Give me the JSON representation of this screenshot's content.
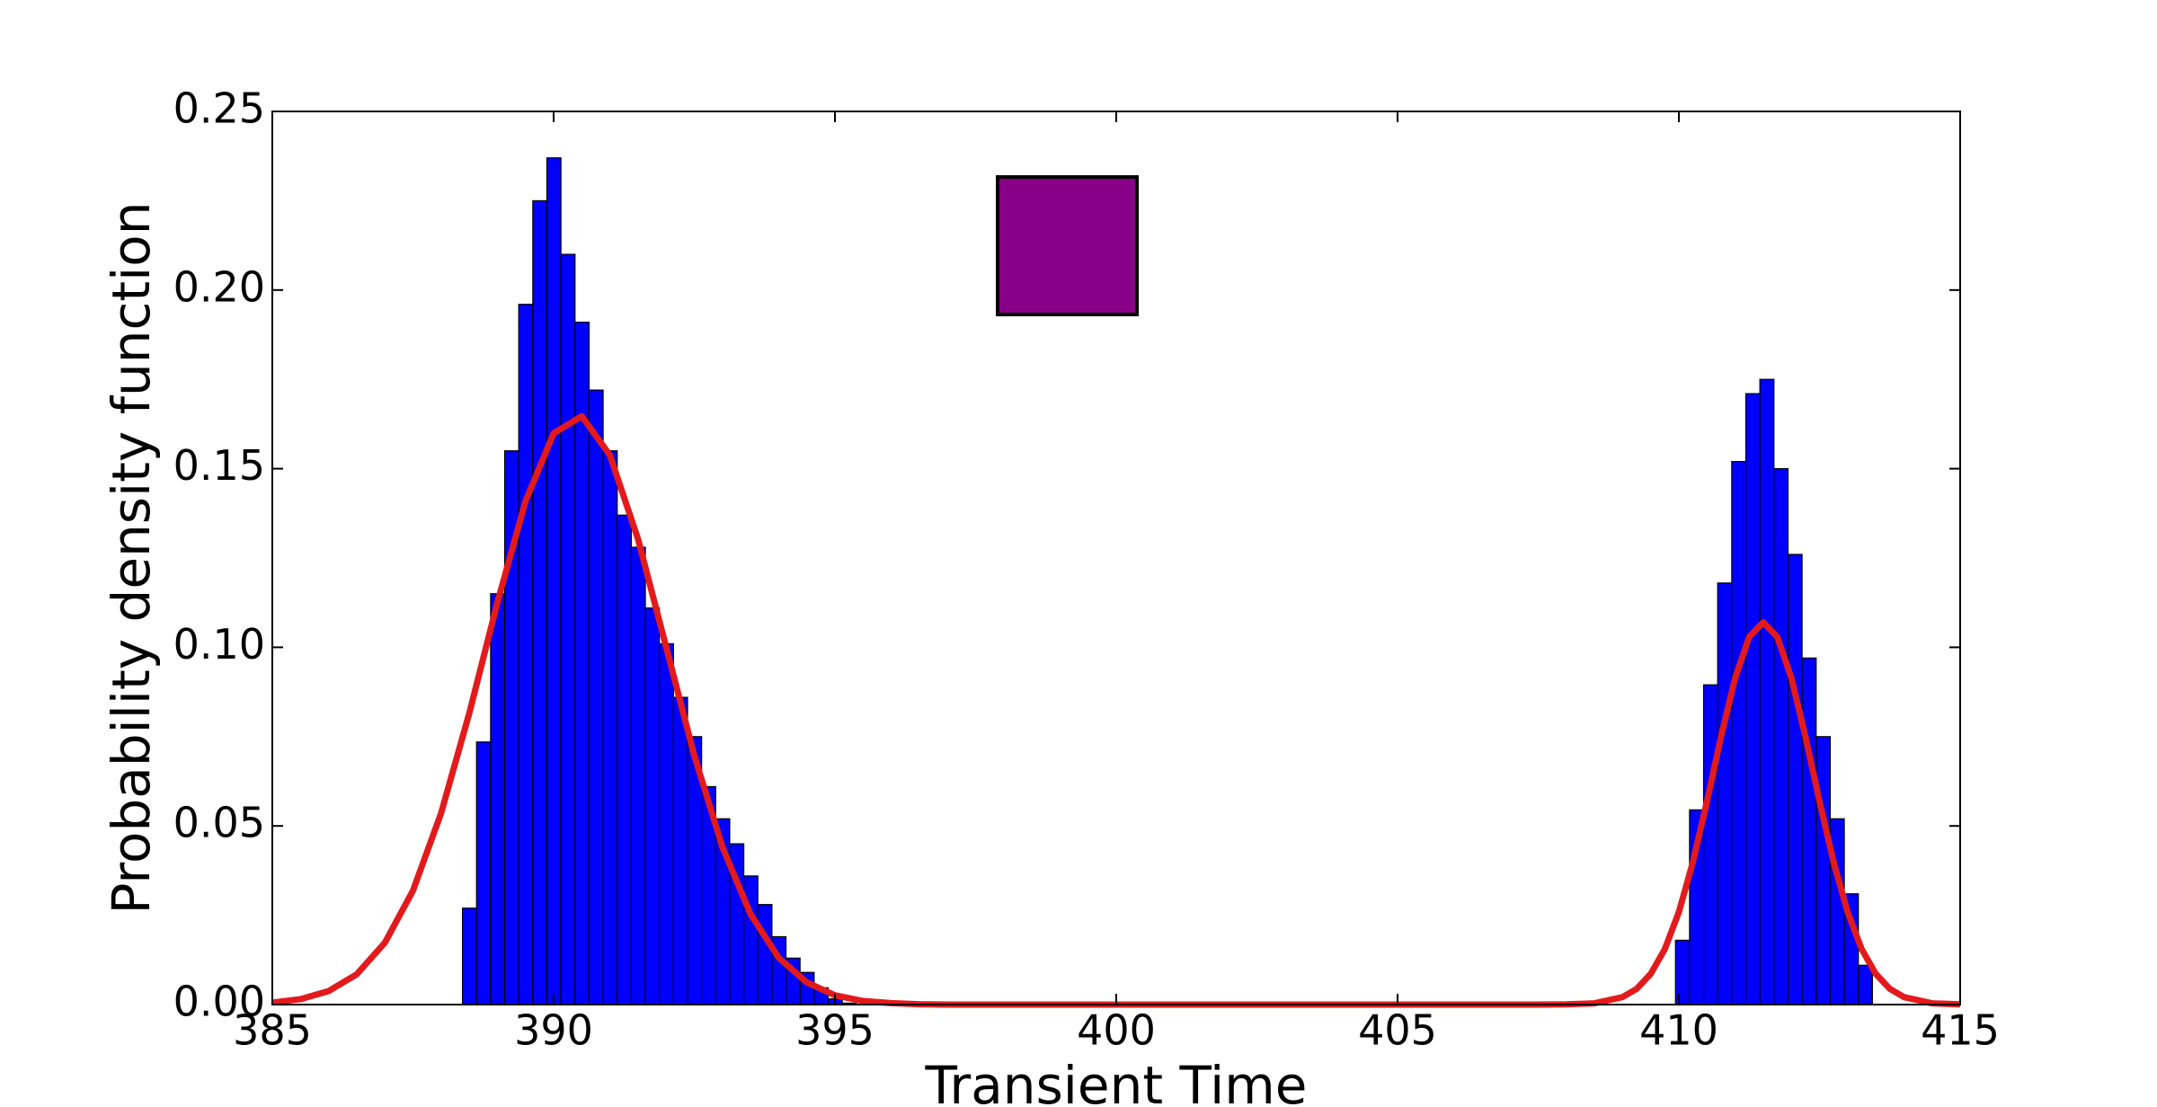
{
  "chart_data": {
    "type": "histogram",
    "xlabel": "Transient Time",
    "ylabel": "Probability density function",
    "xlim": [
      385,
      415
    ],
    "xticks": [
      385,
      390,
      395,
      400,
      405,
      410,
      415
    ],
    "ylim": [
      0,
      0.25
    ],
    "yticks": [
      {
        "value": 0,
        "label": "0.00"
      },
      0.05,
      {
        "value": 0.1,
        "label": "0.10"
      },
      0.15,
      {
        "value": 0.2,
        "label": "0.20"
      },
      0.25
    ],
    "color": "#0000ff",
    "groups": [
      {
        "bins": [
          388.38,
          388.63,
          388.88,
          389.13,
          389.38,
          389.63,
          389.88,
          390.13,
          390.38,
          390.63,
          390.88,
          391.13,
          391.38,
          391.63,
          391.88,
          392.13,
          392.38,
          392.63,
          392.88,
          393.13,
          393.38,
          393.63,
          393.88,
          394.13,
          394.38,
          394.63,
          394.88,
          395.13,
          395.38
        ],
        "values": [
          0.027,
          0.0735,
          0.115,
          0.155,
          0.196,
          0.225,
          0.237,
          0.21,
          0.191,
          0.172,
          0.155,
          0.137,
          0.128,
          0.111,
          0.101,
          0.086,
          0.075,
          0.061,
          0.052,
          0.045,
          0.036,
          0.028,
          0.019,
          0.013,
          0.009,
          0.0047,
          0.0016,
          0.0004
        ]
      },
      {
        "bins": [
          409.94,
          410.19,
          410.44,
          410.69,
          410.94,
          411.19,
          411.44,
          411.69,
          411.94,
          412.19,
          412.44,
          412.69,
          412.94,
          413.19,
          413.44
        ],
        "values": [
          0.018,
          0.0545,
          0.0895,
          0.118,
          0.152,
          0.171,
          0.175,
          0.15,
          0.126,
          0.097,
          0.075,
          0.052,
          0.031,
          0.011
        ]
      }
    ],
    "curve": {
      "type": "line",
      "color": "#e31a1c",
      "x": [
        385,
        385.5,
        386,
        386.5,
        387,
        387.5,
        388,
        388.5,
        389,
        389.5,
        390,
        390.5,
        391,
        391.5,
        392,
        392.5,
        393,
        393.5,
        394,
        394.5,
        395,
        395.5,
        396,
        396.5,
        397,
        407.5,
        408,
        408.5,
        409,
        409.25,
        409.5,
        409.75,
        410,
        410.25,
        410.5,
        410.75,
        411,
        411.25,
        411.5,
        411.75,
        412,
        412.25,
        412.5,
        412.75,
        413,
        413.25,
        413.5,
        413.75,
        414,
        414.5,
        415
      ],
      "values": [
        0.00055,
        0.00152,
        0.00376,
        0.00847,
        0.0173,
        0.0319,
        0.0536,
        0.0815,
        0.1125,
        0.1409,
        0.1599,
        0.1647,
        0.1538,
        0.1303,
        0.1001,
        0.0697,
        0.0441,
        0.0253,
        0.0131,
        0.0062,
        0.0026,
        0.001,
        0.0004,
        0.0001,
        0,
        0,
        5e-05,
        0.00036,
        0.0021,
        0.0044,
        0.0086,
        0.0155,
        0.0259,
        0.0399,
        0.0569,
        0.075,
        0.0914,
        0.1029,
        0.107,
        0.1029,
        0.0914,
        0.075,
        0.0569,
        0.0399,
        0.0259,
        0.0155,
        0.0086,
        0.0044,
        0.0021,
        0.00036,
        5e-05
      ]
    }
  }
}
